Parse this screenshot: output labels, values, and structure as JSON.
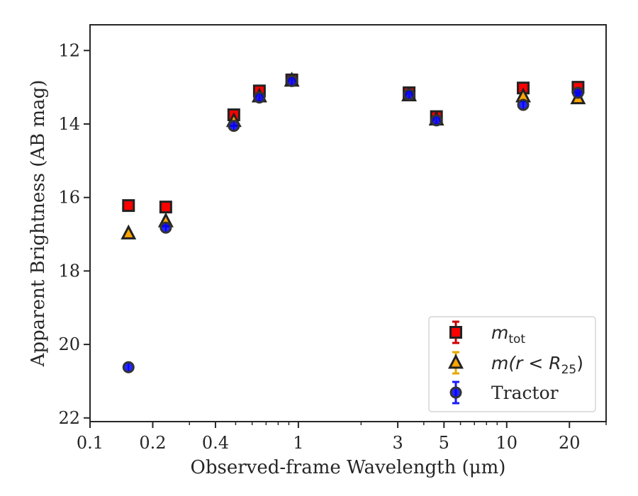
{
  "chart_data": {
    "type": "scatter",
    "xlabel": "Observed-frame Wavelength (μm)",
    "ylabel": "Apparent Brightness (AB mag)",
    "x_scale": "log",
    "xlim": [
      0.1,
      30
    ],
    "ylim": [
      22.1,
      11.3
    ],
    "y_inverted": true,
    "x_ticks": [
      {
        "value": 0.1,
        "label": "0.1"
      },
      {
        "value": 0.2,
        "label": "0.2"
      },
      {
        "value": 0.4,
        "label": "0.4"
      },
      {
        "value": 1,
        "label": "1"
      },
      {
        "value": 3,
        "label": "3"
      },
      {
        "value": 5,
        "label": "5"
      },
      {
        "value": 10,
        "label": "10"
      },
      {
        "value": 20,
        "label": "20"
      }
    ],
    "y_ticks": [
      {
        "value": 12,
        "label": "12"
      },
      {
        "value": 14,
        "label": "14"
      },
      {
        "value": 16,
        "label": "16"
      },
      {
        "value": 18,
        "label": "18"
      },
      {
        "value": 20,
        "label": "20"
      },
      {
        "value": 22,
        "label": "22"
      }
    ],
    "grid": false,
    "legend_position": "bottom-right",
    "series": [
      {
        "name": "m_tot",
        "legend_main": "m",
        "legend_sub": "tot",
        "marker": "square",
        "fill": "#ff0000",
        "edge": "#222222",
        "errorbar_color": "#cc0000",
        "points": [
          {
            "x": 0.153,
            "y": 16.22
          },
          {
            "x": 0.231,
            "y": 16.26
          },
          {
            "x": 0.49,
            "y": 13.75
          },
          {
            "x": 0.65,
            "y": 13.1
          },
          {
            "x": 0.93,
            "y": 12.8
          },
          {
            "x": 3.4,
            "y": 13.15
          },
          {
            "x": 4.6,
            "y": 13.8
          },
          {
            "x": 12,
            "y": 13.02
          },
          {
            "x": 22,
            "y": 13.0
          }
        ]
      },
      {
        "name": "m(r < R_25)",
        "legend_main": "m(r < R",
        "legend_sub": "25",
        "legend_tail": ")",
        "marker": "triangle",
        "fill": "#ffa500",
        "edge": "#222222",
        "errorbar_color": "#e6a800",
        "points": [
          {
            "x": 0.153,
            "y": 16.98
          },
          {
            "x": 0.231,
            "y": 16.65
          },
          {
            "x": 0.49,
            "y": 13.92
          },
          {
            "x": 0.65,
            "y": 13.25
          },
          {
            "x": 0.93,
            "y": 12.82
          },
          {
            "x": 3.4,
            "y": 13.22
          },
          {
            "x": 4.6,
            "y": 13.88
          },
          {
            "x": 12,
            "y": 13.25
          },
          {
            "x": 22,
            "y": 13.3
          }
        ]
      },
      {
        "name": "Tractor",
        "legend_main": "Tractor",
        "marker": "circle",
        "fill": "#0000ff",
        "edge": "#333333",
        "errorbar_color": "#1a1aff",
        "points": [
          {
            "x": 0.153,
            "y": 20.62
          },
          {
            "x": 0.231,
            "y": 16.82
          },
          {
            "x": 0.49,
            "y": 14.05
          },
          {
            "x": 0.65,
            "y": 13.28
          },
          {
            "x": 0.93,
            "y": 12.83
          },
          {
            "x": 3.4,
            "y": 13.2
          },
          {
            "x": 4.6,
            "y": 13.9
          },
          {
            "x": 12,
            "y": 13.48
          },
          {
            "x": 22,
            "y": 13.15
          }
        ]
      }
    ]
  }
}
